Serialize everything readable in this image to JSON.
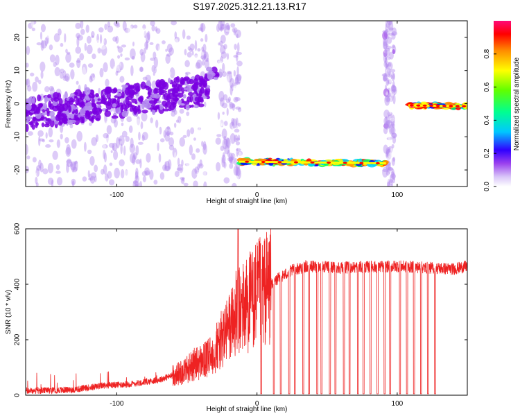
{
  "title": "S197.2025.312.21.13.R17",
  "chart_data": [
    {
      "type": "heatmap",
      "name": "spectrogram",
      "xlabel": "Height of straight line (km)",
      "ylabel": "Frequency (Hz)",
      "xlim": [
        -165,
        150
      ],
      "ylim": [
        -25,
        25
      ],
      "xticks": [
        -100,
        0,
        100
      ],
      "yticks": [
        -20,
        -10,
        0,
        10,
        20
      ],
      "x_tick_labels": [
        "-100",
        "0",
        "100"
      ],
      "y_tick_labels": [
        "-20",
        "-10",
        "0",
        "10",
        "20"
      ],
      "colorbar": {
        "label": "Normalized spectral amplitude",
        "range": [
          0,
          1
        ],
        "ticks": [
          0.0,
          0.2,
          0.4,
          0.6,
          0.8
        ],
        "tick_labels": [
          "0.0",
          "0.2",
          "0.4",
          "0.6",
          "0.8"
        ],
        "colors": [
          "#ffffff",
          "#b48cf0",
          "#7a00e0",
          "#0000ff",
          "#00d2ff",
          "#00ff64",
          "#ffff00",
          "#ff8c00",
          "#ff0000",
          "#ff0a78"
        ]
      },
      "segments": [
        {
          "x": [
            -165,
            -35
          ],
          "freq_start": -3,
          "freq_end": 4,
          "spread": 9,
          "amplitude": 0.22
        },
        {
          "x": [
            -35,
            -28
          ],
          "freq_start": 9,
          "freq_end": 8,
          "spread": 4,
          "amplitude": 0.25
        },
        {
          "x": [
            -13,
            92
          ],
          "freq_start": -17.5,
          "freq_end": -18,
          "spread": 1.2,
          "amplitude": 0.9
        },
        {
          "x": [
            108,
            150
          ],
          "freq_start": -0.5,
          "freq_end": -0.8,
          "spread": 1,
          "amplitude": 0.95
        }
      ]
    },
    {
      "type": "line",
      "name": "snr",
      "xlabel": "Height of straight line (km)",
      "ylabel": "SNR (10 * v/v)",
      "xlim": [
        -165,
        150
      ],
      "ylim": [
        0,
        600
      ],
      "xticks": [
        -100,
        0,
        100
      ],
      "yticks": [
        0,
        200,
        400,
        600
      ],
      "x_tick_labels": [
        "-100",
        "0",
        "100"
      ],
      "y_tick_labels": [
        "0",
        "200",
        "400",
        "600"
      ],
      "color": "#ee2222",
      "keypoints_x": [
        -165,
        -130,
        -110,
        -90,
        -70,
        -55,
        -45,
        -35,
        -25,
        -15,
        -5,
        5,
        15,
        25,
        35,
        60,
        100,
        140,
        150
      ],
      "keypoints_y": [
        15,
        20,
        35,
        40,
        55,
        80,
        110,
        130,
        200,
        290,
        340,
        380,
        420,
        450,
        465,
        460,
        465,
        455,
        465
      ],
      "peak": {
        "x": -13.5,
        "y": 600
      },
      "dropouts_x": [
        3,
        12,
        17,
        23,
        27,
        33,
        37,
        43,
        46,
        52,
        56,
        62,
        66,
        72,
        76,
        81,
        86,
        91,
        95,
        102,
        107,
        112,
        117,
        122,
        127
      ]
    }
  ]
}
